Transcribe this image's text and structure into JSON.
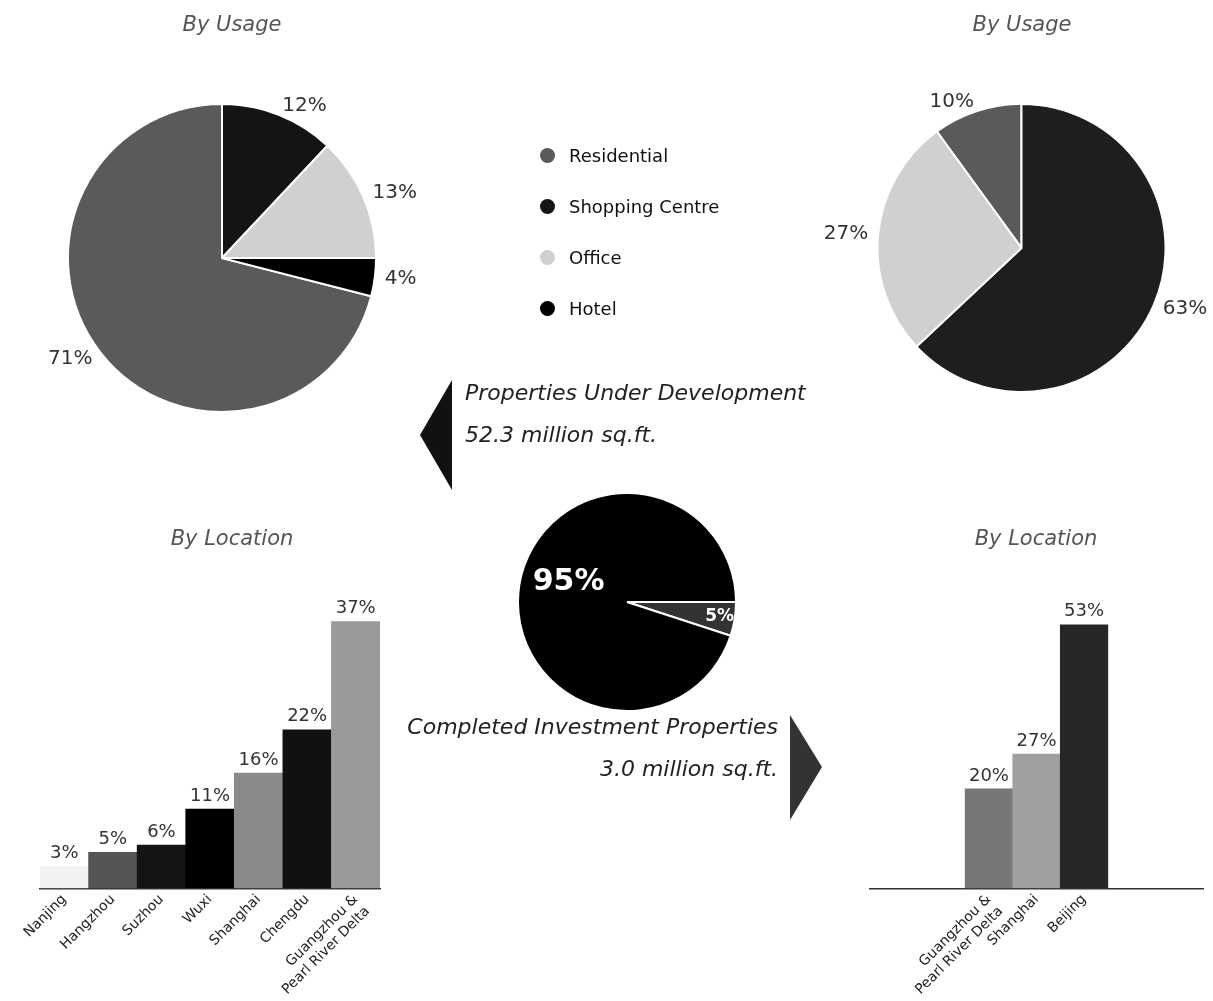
{
  "chart_data": [
    {
      "type": "pie",
      "title": "By Usage",
      "categories": [
        "Residential",
        "Shopping Centre",
        "Office",
        "Hotel"
      ],
      "values": [
        71,
        12,
        13,
        4
      ],
      "colors": [
        "#5a5a5a",
        "#141414",
        "#d0d0d0",
        "#000000"
      ],
      "value_labels": [
        "71%",
        "12%",
        "13%",
        "4%"
      ],
      "legend": "right"
    },
    {
      "type": "pie",
      "title": "By Usage",
      "categories": [
        null,
        null,
        null
      ],
      "values": [
        10,
        63,
        27
      ],
      "colors": [
        "#5a5a5a",
        "#1e1e1e",
        "#d0d0d0"
      ],
      "value_labels": [
        "10%",
        "63%",
        "27%"
      ]
    },
    {
      "type": "pie",
      "categories": [
        null,
        null
      ],
      "values": [
        5,
        95
      ],
      "colors": [
        "#333333",
        "#000000"
      ],
      "value_labels": [
        "5%",
        "95%"
      ],
      "annotations": [
        "Properties Under Development",
        "52.3 million sq.ft.",
        "Completed Investment Properties",
        "3.0 million sq.ft."
      ]
    },
    {
      "type": "bar",
      "title": "By Location",
      "categories": [
        "Nanjing",
        "Hangzhou",
        "Suzhou",
        "Wuxi",
        "Shanghai",
        "Chengdu",
        "Guangzhou & Pearl River Delta"
      ],
      "values": [
        3,
        5,
        6,
        11,
        16,
        22,
        37
      ],
      "colors": [
        "#f2f2f2",
        "#555555",
        "#141414",
        "#000000",
        "#8a8a8a",
        "#111111",
        "#9a9a9a"
      ],
      "value_labels": [
        "3%",
        "5%",
        "6%",
        "11%",
        "16%",
        "22%",
        "37%"
      ]
    },
    {
      "type": "bar",
      "title": "By Location",
      "categories": [
        null,
        null,
        "Guangzhou & Pearl River Delta",
        "Shanghai",
        "Beijing",
        null,
        null
      ],
      "values": [
        null,
        null,
        20,
        27,
        53,
        null,
        null
      ],
      "colors": [
        "#ffffff",
        "#ffffff",
        "#777777",
        "#a0a0a0",
        "#262626",
        "#ffffff",
        "#ffffff"
      ],
      "value_labels": [
        null,
        null,
        "20%",
        "27%",
        "53%",
        null,
        null
      ]
    }
  ]
}
